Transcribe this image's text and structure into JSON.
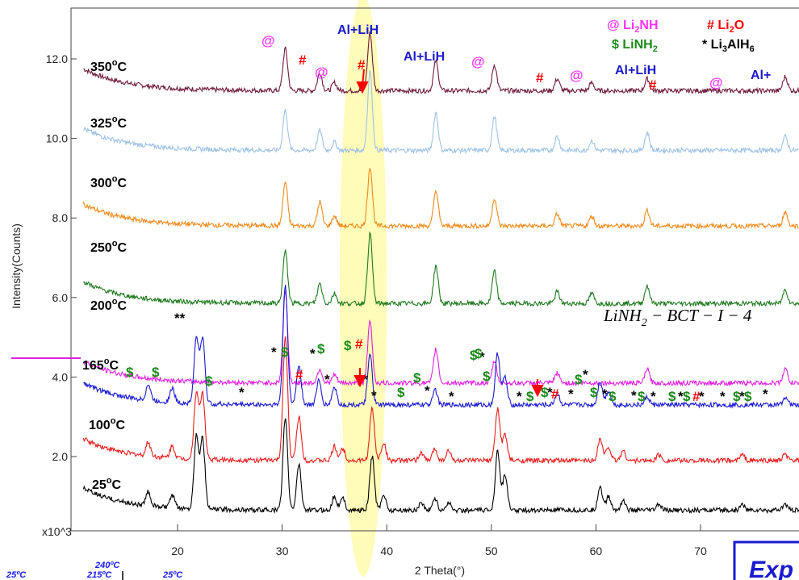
{
  "chart_data": {
    "type": "line",
    "xlabel": "2 Theta(°)",
    "ylabel": "Intensity(Counts)",
    "y_multiplier": "x10^3",
    "xlim": [
      10,
      80
    ],
    "ylim": [
      0,
      13.2
    ],
    "xticks": [
      20,
      30,
      40,
      50,
      60,
      70
    ],
    "yticks": [
      "2.0",
      "4.0",
      "6.0",
      "8.0",
      "10.0",
      "12.0"
    ],
    "sample_label": "LiNH2 - BCT - I - 4",
    "highlight_band": [
      35.5,
      40.0
    ],
    "series": [
      {
        "name": "350°C",
        "color": "#6e1a3c",
        "baseline": 11.2,
        "peaks": [
          [
            30.3,
            1.05
          ],
          [
            33.6,
            0.45
          ],
          [
            35.0,
            0.2
          ],
          [
            38.4,
            1.45
          ],
          [
            44.7,
            0.75
          ],
          [
            50.3,
            0.65
          ],
          [
            56.3,
            0.3
          ],
          [
            59.6,
            0.2
          ],
          [
            64.9,
            0.3
          ],
          [
            78.1,
            0.35
          ]
        ]
      },
      {
        "name": "325°C",
        "color": "#9ec3e6",
        "baseline": 9.7,
        "peaks": [
          [
            30.3,
            1.0
          ],
          [
            33.6,
            0.5
          ],
          [
            35.0,
            0.2
          ],
          [
            38.4,
            2.0
          ],
          [
            44.7,
            0.95
          ],
          [
            50.3,
            0.85
          ],
          [
            56.3,
            0.35
          ],
          [
            59.6,
            0.25
          ],
          [
            64.9,
            0.45
          ],
          [
            78.1,
            0.35
          ]
        ]
      },
      {
        "name": "300°C",
        "color": "#f08a1c",
        "baseline": 7.8,
        "peaks": [
          [
            30.3,
            1.1
          ],
          [
            33.6,
            0.6
          ],
          [
            35.0,
            0.25
          ],
          [
            38.4,
            1.5
          ],
          [
            44.7,
            0.9
          ],
          [
            50.3,
            0.7
          ],
          [
            56.3,
            0.3
          ],
          [
            59.6,
            0.25
          ],
          [
            64.9,
            0.4
          ],
          [
            78.1,
            0.35
          ]
        ]
      },
      {
        "name": "250°C",
        "color": "#1e7a1e",
        "baseline": 5.85,
        "peaks": [
          [
            30.3,
            1.3
          ],
          [
            33.6,
            0.5
          ],
          [
            35.0,
            0.25
          ],
          [
            38.4,
            1.75
          ],
          [
            44.7,
            0.95
          ],
          [
            50.3,
            0.8
          ],
          [
            56.3,
            0.3
          ],
          [
            59.6,
            0.25
          ],
          [
            64.9,
            0.45
          ],
          [
            78.1,
            0.35
          ]
        ]
      },
      {
        "name": "200°C",
        "color": "#e020e0",
        "baseline": 3.85,
        "peaks": [
          [
            30.3,
            2.3
          ],
          [
            33.6,
            0.35
          ],
          [
            35.0,
            0.2
          ],
          [
            38.4,
            1.55
          ],
          [
            44.7,
            0.85
          ],
          [
            50.3,
            0.55
          ],
          [
            56.3,
            0.25
          ],
          [
            64.9,
            0.35
          ],
          [
            78.1,
            0.35
          ]
        ]
      },
      {
        "name": "165°C",
        "color": "#1a1ad0",
        "baseline": 3.3,
        "peaks": [
          [
            17.2,
            0.4
          ],
          [
            19.5,
            0.35
          ],
          [
            21.8,
            1.65
          ],
          [
            22.4,
            1.65
          ],
          [
            30.3,
            3.0
          ],
          [
            31.6,
            1.0
          ],
          [
            33.5,
            0.6
          ],
          [
            35.0,
            0.45
          ],
          [
            38.4,
            1.25
          ],
          [
            44.6,
            0.4
          ],
          [
            50.6,
            1.3
          ],
          [
            51.3,
            0.7
          ],
          [
            56.3,
            0.3
          ],
          [
            60.4,
            0.6
          ],
          [
            61.2,
            0.35
          ],
          [
            64.9,
            0.2
          ],
          [
            78.1,
            0.2
          ]
        ]
      },
      {
        "name": "100°C",
        "color": "#e81c1c",
        "baseline": 1.9,
        "peaks": [
          [
            17.2,
            0.35
          ],
          [
            19.5,
            0.3
          ],
          [
            21.8,
            1.7
          ],
          [
            22.4,
            1.65
          ],
          [
            30.3,
            3.1
          ],
          [
            31.6,
            1.1
          ],
          [
            35.0,
            0.35
          ],
          [
            35.8,
            0.3
          ],
          [
            38.6,
            1.3
          ],
          [
            39.7,
            0.45
          ],
          [
            43.3,
            0.2
          ],
          [
            44.6,
            0.3
          ],
          [
            45.9,
            0.25
          ],
          [
            50.6,
            1.3
          ],
          [
            51.3,
            0.65
          ],
          [
            60.4,
            0.55
          ],
          [
            61.2,
            0.35
          ],
          [
            62.6,
            0.25
          ],
          [
            66.0,
            0.15
          ],
          [
            74.0,
            0.15
          ],
          [
            78.1,
            0.15
          ]
        ]
      },
      {
        "name": "25°C",
        "color": "#000000",
        "baseline": 0.65,
        "peaks": [
          [
            17.2,
            0.35
          ],
          [
            19.5,
            0.3
          ],
          [
            21.8,
            1.85
          ],
          [
            22.4,
            1.75
          ],
          [
            30.3,
            2.3
          ],
          [
            31.6,
            1.15
          ],
          [
            35.0,
            0.35
          ],
          [
            35.8,
            0.3
          ],
          [
            38.6,
            1.35
          ],
          [
            39.7,
            0.4
          ],
          [
            43.3,
            0.2
          ],
          [
            44.6,
            0.3
          ],
          [
            45.9,
            0.2
          ],
          [
            50.6,
            1.5
          ],
          [
            51.3,
            0.9
          ],
          [
            60.4,
            0.6
          ],
          [
            61.2,
            0.35
          ],
          [
            62.6,
            0.25
          ],
          [
            66.0,
            0.15
          ],
          [
            74.0,
            0.15
          ],
          [
            78.1,
            0.15
          ]
        ]
      }
    ],
    "legend": [
      {
        "symbol": "@",
        "text": "Li2NH",
        "color": "#ff33ff"
      },
      {
        "symbol": "#",
        "text": "Li2O",
        "color": "#ff0000"
      },
      {
        "symbol": "$",
        "text": "LiNH2",
        "color": "#1a8a1a"
      },
      {
        "symbol": "*",
        "text": "Li3AlH6",
        "color": "#000000"
      }
    ],
    "phase_labels": [
      {
        "text": "Al+LiH",
        "color": "#1a1acc"
      },
      {
        "text": "Al+LiH",
        "color": "#1a1acc"
      },
      {
        "text": "Al+LiH",
        "color": "#1a1acc"
      },
      {
        "text": "Al+",
        "color": "#1a1acc"
      }
    ],
    "markers": [
      {
        "s": "@",
        "c": "#ff33ff"
      },
      {
        "s": "#",
        "c": "#ff0000"
      },
      {
        "s": "@",
        "c": "#ff33ff"
      },
      {
        "s": "#",
        "c": "#ff0000"
      },
      {
        "s": "@",
        "c": "#ff33ff"
      },
      {
        "s": "#",
        "c": "#ff0000"
      },
      {
        "s": "@",
        "c": "#ff33ff"
      },
      {
        "s": "#",
        "c": "#ff0000"
      },
      {
        "s": "@",
        "c": "#ff33ff"
      },
      {
        "s": "**",
        "c": "#000000"
      },
      {
        "s": "$",
        "c": "#1a8a1a"
      },
      {
        "s": "$",
        "c": "#1a8a1a"
      },
      {
        "s": "$",
        "c": "#1a8a1a"
      },
      {
        "s": "*",
        "c": "#000000"
      },
      {
        "s": "*",
        "c": "#000000"
      },
      {
        "s": "$",
        "c": "#1a8a1a"
      },
      {
        "s": "#",
        "c": "#ff0000"
      },
      {
        "s": "*",
        "c": "#000000"
      },
      {
        "s": "$",
        "c": "#1a8a1a"
      },
      {
        "s": "*",
        "c": "#000000"
      },
      {
        "s": "$",
        "c": "#1a8a1a"
      },
      {
        "s": "#",
        "c": "#ff0000"
      },
      {
        "s": "*",
        "c": "#000000"
      },
      {
        "s": "*",
        "c": "#000000"
      },
      {
        "s": "$",
        "c": "#1a8a1a"
      },
      {
        "s": "$",
        "c": "#1a8a1a"
      },
      {
        "s": "*",
        "c": "#000000"
      },
      {
        "s": "*",
        "c": "#000000"
      },
      {
        "s": "$",
        "c": "#1a8a1a"
      },
      {
        "s": "*",
        "c": "#000000"
      },
      {
        "s": "$",
        "c": "#1a8a1a"
      },
      {
        "s": "*",
        "c": "#000000"
      },
      {
        "s": "$",
        "c": "#1a8a1a"
      },
      {
        "s": "$",
        "c": "#1a8a1a"
      },
      {
        "s": "#",
        "c": "#ff0000"
      },
      {
        "s": "*",
        "c": "#000000"
      },
      {
        "s": "$",
        "c": "#1a8a1a"
      },
      {
        "s": "*",
        "c": "#000000"
      },
      {
        "s": "$",
        "c": "#1a8a1a"
      },
      {
        "s": "*",
        "c": "#000000"
      },
      {
        "s": "$",
        "c": "#1a8a1a"
      },
      {
        "s": "*",
        "c": "#000000"
      },
      {
        "s": "$",
        "c": "#1a8a1a"
      },
      {
        "s": "*",
        "c": "#000000"
      },
      {
        "s": "$",
        "c": "#1a8a1a"
      },
      {
        "s": "*",
        "c": "#000000"
      },
      {
        "s": "$",
        "c": "#1a8a1a"
      },
      {
        "s": "#",
        "c": "#ff0000"
      },
      {
        "s": "*",
        "c": "#000000"
      },
      {
        "s": "$",
        "c": "#1a8a1a"
      },
      {
        "s": "*",
        "c": "#000000"
      },
      {
        "s": "*",
        "c": "#000000"
      },
      {
        "s": "*",
        "c": "#000000"
      },
      {
        "s": "*",
        "c": "#000000"
      },
      {
        "s": "$",
        "c": "#1a8a1a"
      },
      {
        "s": "$",
        "c": "#1a8a1a"
      }
    ],
    "bottom_notes": [
      "25ºC",
      "240ºC",
      "215ºC",
      "25ºC"
    ],
    "corner_box_text": "Exp"
  }
}
